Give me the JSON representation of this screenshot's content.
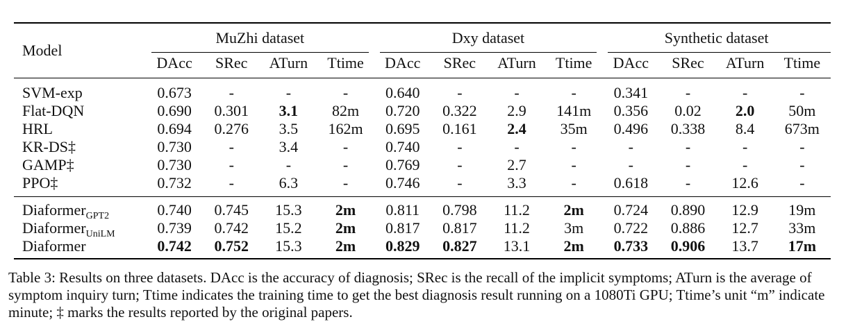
{
  "table": {
    "model_header": "Model",
    "datasets": [
      "MuZhi dataset",
      "Dxy dataset",
      "Synthetic dataset"
    ],
    "metrics": [
      "DAcc",
      "SRec",
      "ATurn",
      "Ttime"
    ],
    "rows": [
      {
        "model": "SVM-exp",
        "sub": "",
        "values": [
          "0.673",
          "-",
          "-",
          "-",
          "0.640",
          "-",
          "-",
          "-",
          "0.341",
          "-",
          "-",
          "-"
        ],
        "bold": []
      },
      {
        "model": "Flat-DQN",
        "sub": "",
        "values": [
          "0.690",
          "0.301",
          "3.1",
          "82m",
          "0.720",
          "0.322",
          "2.9",
          "141m",
          "0.356",
          "0.02",
          "2.0",
          "50m"
        ],
        "bold": [
          2,
          10
        ]
      },
      {
        "model": "HRL",
        "sub": "",
        "values": [
          "0.694",
          "0.276",
          "3.5",
          "162m",
          "0.695",
          "0.161",
          "2.4",
          "35m",
          "0.496",
          "0.338",
          "8.4",
          "673m"
        ],
        "bold": [
          6
        ]
      },
      {
        "model": "KR-DS‡",
        "sub": "",
        "values": [
          "0.730",
          "-",
          "3.4",
          "-",
          "0.740",
          "-",
          "-",
          "-",
          "-",
          "-",
          "-",
          "-"
        ],
        "bold": []
      },
      {
        "model": "GAMP‡",
        "sub": "",
        "values": [
          "0.730",
          "-",
          "-",
          "-",
          "0.769",
          "-",
          "2.7",
          "-",
          "-",
          "-",
          "-",
          "-"
        ],
        "bold": []
      },
      {
        "model": "PPO‡",
        "sub": "",
        "values": [
          "0.732",
          "-",
          "6.3",
          "-",
          "0.746",
          "-",
          "3.3",
          "-",
          "0.618",
          "-",
          "12.6",
          "-"
        ],
        "bold": []
      },
      {
        "model": "Diaformer",
        "sub": "GPT2",
        "values": [
          "0.740",
          "0.745",
          "15.3",
          "2m",
          "0.811",
          "0.798",
          "11.2",
          "2m",
          "0.724",
          "0.890",
          "12.9",
          "19m"
        ],
        "bold": [
          3,
          7
        ]
      },
      {
        "model": "Diaformer",
        "sub": "UniLM",
        "values": [
          "0.739",
          "0.742",
          "15.2",
          "2m",
          "0.817",
          "0.817",
          "11.2",
          "3m",
          "0.722",
          "0.886",
          "12.7",
          "33m"
        ],
        "bold": [
          3
        ]
      },
      {
        "model": "Diaformer",
        "sub": "",
        "values": [
          "0.742",
          "0.752",
          "15.3",
          "2m",
          "0.829",
          "0.827",
          "13.1",
          "2m",
          "0.733",
          "0.906",
          "13.7",
          "17m"
        ],
        "bold": [
          0,
          1,
          3,
          4,
          5,
          7,
          8,
          9,
          11
        ]
      }
    ]
  },
  "caption": "Table 3: Results on three datasets. DAcc is the accuracy of diagnosis; SRec is the recall of the implicit symptoms; ATurn is the average of symptom inquiry turn; Ttime indicates the training time to get the best diagnosis result running on a 1080Ti GPU; Ttime’s unit “m” indicate minute; ‡ marks the results reported by the original papers."
}
